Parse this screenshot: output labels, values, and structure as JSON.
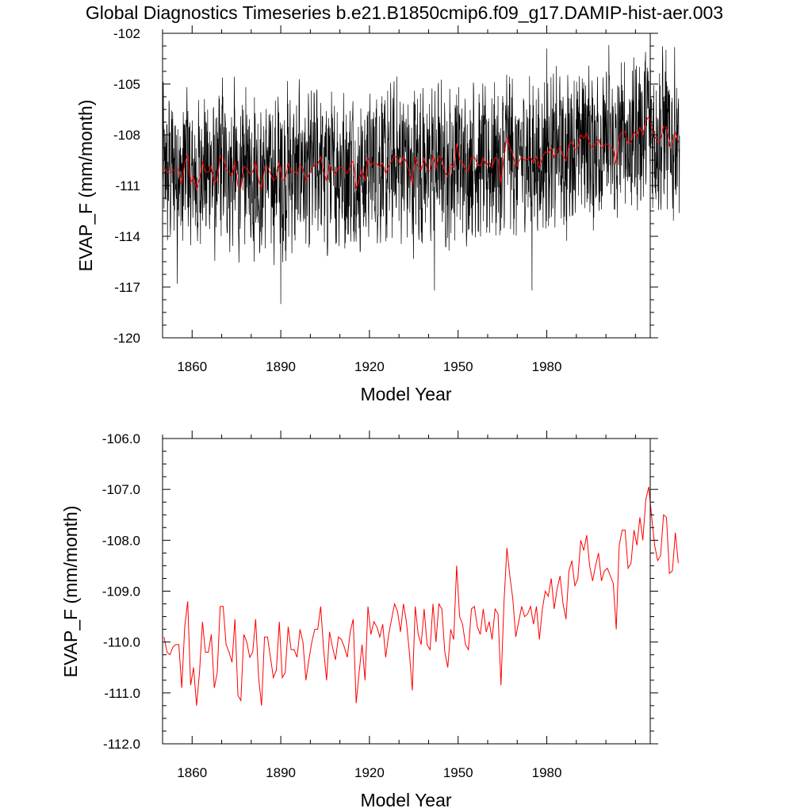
{
  "title": "Global Diagnostics Timeseries b.e21.B1850cmip6.f09_g17.DAMIP-hist-aer.003",
  "chart_data": [
    {
      "type": "line",
      "xlabel": "Model Year",
      "ylabel": "EVAP_F (mm/month)",
      "xlim": [
        1850,
        2015
      ],
      "ylim": [
        -120,
        -102
      ],
      "xticks": [
        1860,
        1890,
        1920,
        1950,
        1980
      ],
      "yticks": [
        "-120",
        "-117",
        "-114",
        "-111",
        "-108",
        "-105",
        "-102"
      ],
      "grid": false,
      "series": [
        {
          "kind": "monthly",
          "color": "#000000",
          "summary": "monthly values oscillating roughly 5-7 mm/month around the annual mean; range about -118 to -103; extreme low near 1890 (-118.0), also -117.2 near 1942 and 1975"
        },
        {
          "kind": "annual-mean",
          "color": "#ff0000",
          "values_ref": "chart_data.1.series.0.values"
        }
      ]
    },
    {
      "type": "line",
      "xlabel": "Model Year",
      "ylabel": "EVAP_F (mm/month)",
      "xlim": [
        1850,
        2015
      ],
      "ylim": [
        -112,
        -106
      ],
      "xticks": [
        1860,
        1890,
        1920,
        1950,
        1980
      ],
      "yticks": [
        "-112.0",
        "-111.0",
        "-110.0",
        "-109.0",
        "-108.0",
        "-107.0",
        "-106.0"
      ],
      "grid": false,
      "series": [
        {
          "color": "#ff0000",
          "x_start": 1850,
          "values": [
            -109.9,
            -110.2,
            -110.25,
            -110.1,
            -110.05,
            -110.05,
            -110.9,
            -109.7,
            -109.2,
            -110.85,
            -110.5,
            -111.25,
            -110.6,
            -109.6,
            -110.2,
            -110.2,
            -109.85,
            -110.9,
            -110.6,
            -109.3,
            -109.3,
            -110.05,
            -110.2,
            -110.4,
            -109.55,
            -111.05,
            -111.15,
            -109.85,
            -110.0,
            -110.3,
            -110.2,
            -109.55,
            -110.7,
            -111.25,
            -109.9,
            -109.9,
            -110.3,
            -110.7,
            -110.55,
            -109.6,
            -110.7,
            -110.6,
            -109.7,
            -110.15,
            -110.15,
            -110.3,
            -109.75,
            -110.0,
            -110.75,
            -110.35,
            -110.0,
            -109.75,
            -109.75,
            -109.3,
            -110.15,
            -110.75,
            -109.8,
            -110.1,
            -110.35,
            -109.9,
            -109.95,
            -110.1,
            -110.3,
            -109.8,
            -109.55,
            -111.2,
            -110.6,
            -110.05,
            -110.75,
            -109.3,
            -109.85,
            -109.6,
            -109.7,
            -109.9,
            -109.65,
            -110.3,
            -109.85,
            -109.55,
            -109.25,
            -109.4,
            -109.8,
            -109.25,
            -109.6,
            -110.2,
            -110.95,
            -109.3,
            -109.85,
            -110.05,
            -109.35,
            -110.05,
            -110.15,
            -109.25,
            -110.0,
            -109.25,
            -109.35,
            -110.2,
            -110.5,
            -109.75,
            -109.95,
            -108.5,
            -109.5,
            -109.65,
            -110.05,
            -110.15,
            -109.35,
            -109.3,
            -109.7,
            -109.85,
            -109.35,
            -109.8,
            -109.6,
            -109.95,
            -109.35,
            -109.45,
            -110.85,
            -109.25,
            -108.15,
            -108.7,
            -109.15,
            -109.9,
            -109.6,
            -109.3,
            -109.5,
            -109.45,
            -109.3,
            -109.65,
            -109.3,
            -109.95,
            -109.35,
            -109.0,
            -109.1,
            -108.75,
            -109.35,
            -108.95,
            -108.7,
            -109.25,
            -109.55,
            -108.6,
            -108.4,
            -108.9,
            -108.75,
            -108.0,
            -108.2,
            -107.9,
            -108.5,
            -108.8,
            -108.5,
            -108.25,
            -108.8,
            -108.6,
            -108.55,
            -108.7,
            -108.85,
            -109.75,
            -108.1,
            -107.8,
            -107.8,
            -108.55,
            -108.45,
            -107.8,
            -108.1,
            -107.55,
            -108.0,
            -107.2,
            -106.95,
            -107.55,
            -108.1,
            -108.4,
            -108.3,
            -107.5,
            -107.55,
            -108.65,
            -108.6,
            -107.85,
            -108.45
          ]
        }
      ]
    }
  ]
}
